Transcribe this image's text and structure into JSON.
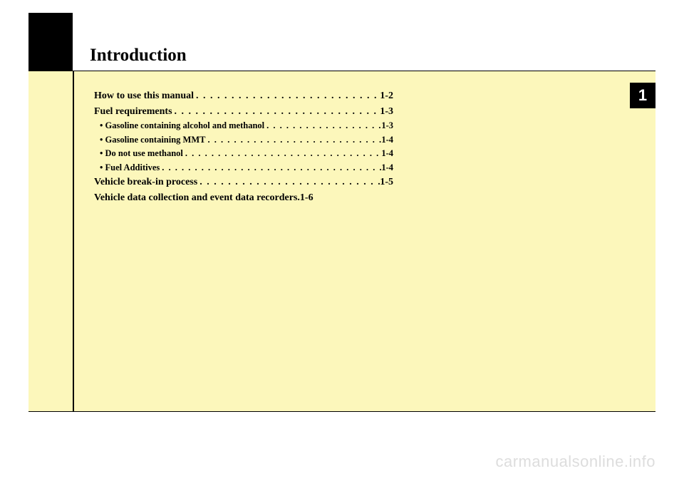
{
  "colors": {
    "page_bg": "#ffffff",
    "panel_bg": "#fcf7bb",
    "ink": "#000000",
    "tab_bg": "#000000",
    "tab_fg": "#ffffff",
    "watermark": "#dddddd"
  },
  "chapter": {
    "title": "Introduction",
    "number": "1"
  },
  "toc": [
    {
      "level": "main",
      "label": "How to use this manual",
      "page": "1-2"
    },
    {
      "level": "main",
      "label": "Fuel requirements",
      "page": "1-3"
    },
    {
      "level": "sub",
      "label": "• Gasoline containing alcohol and methanol",
      "page": "1-3"
    },
    {
      "level": "sub",
      "label": "• Gasoline containing MMT",
      "page": "1-4"
    },
    {
      "level": "sub",
      "label": "• Do not use methanol",
      "page": "1-4"
    },
    {
      "level": "sub",
      "label": "• Fuel Additives",
      "page": "1-4"
    },
    {
      "level": "main",
      "label": "Vehicle break-in process",
      "page": "1-5"
    },
    {
      "level": "main",
      "label": "Vehicle data collection and event data recorders",
      "page": "1-6",
      "nodots": true
    }
  ],
  "watermark": "carmanualsonline.info"
}
